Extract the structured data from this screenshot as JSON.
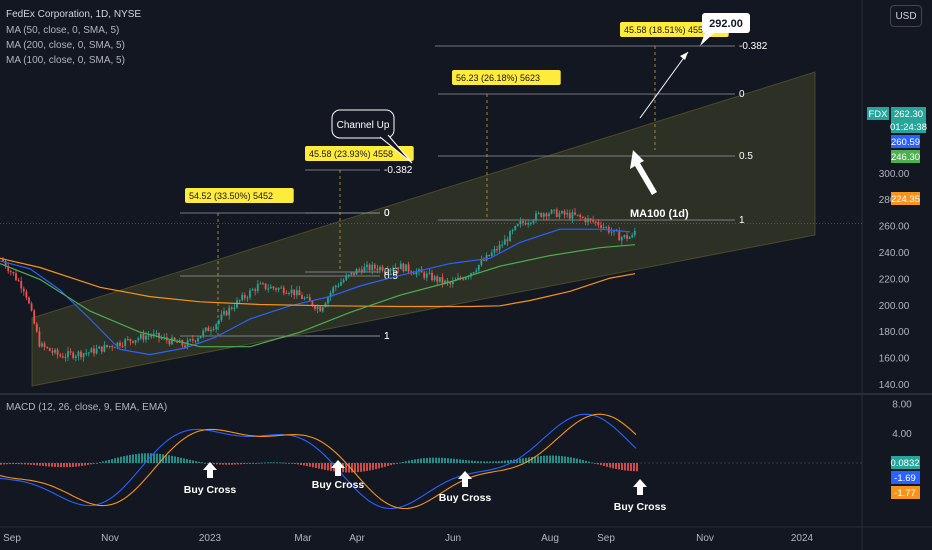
{
  "header": {
    "title": "FedEx Corporation, 1D, NYSE",
    "indicators": [
      "MA (50, close, 0, SMA, 5)",
      "MA (200, close, 0, SMA, 5)",
      "MA (100, close, 0, SMA, 5)"
    ],
    "currency_button": "USD"
  },
  "macd_legend": "MACD (12, 26, close, 9, EMA, EMA)",
  "colors": {
    "background": "#131722",
    "bull": "#26a69a",
    "bear": "#ef5350",
    "ma50": "#2962ff",
    "ma100": "#f7931a",
    "ma200": "#4caf50",
    "channel": "#6b6b2e",
    "label_bg": "#ffeb3b"
  },
  "chart_data": [
    {
      "type": "line",
      "title": "FedEx Corporation, 1D, NYSE",
      "price_axis": {
        "ticks": [
          "300.00",
          "280.00",
          "260.00",
          "240.00",
          "220.00",
          "200.00",
          "180.00",
          "160.00",
          "140.00"
        ],
        "ylim": [
          136,
          306
        ]
      },
      "time_axis": {
        "labels": [
          "Sep",
          "Nov",
          "2023",
          "Mar",
          "Apr",
          "Jun",
          "Aug",
          "Sep",
          "Nov",
          "2024"
        ]
      },
      "series": [
        {
          "name": "MA (50, close, 0, SMA, 5)",
          "color": "#2962ff",
          "points": [
            [
              0,
              234
            ],
            [
              30,
              228
            ],
            [
              60,
              212
            ],
            [
              90,
              190
            ],
            [
              120,
              167
            ],
            [
              150,
              163
            ],
            [
              185,
              168
            ],
            [
              215,
              176
            ],
            [
              250,
              190
            ],
            [
              290,
              200
            ],
            [
              330,
              207
            ],
            [
              360,
              215
            ],
            [
              400,
              223
            ],
            [
              450,
              232
            ],
            [
              490,
              236
            ],
            [
              520,
              248
            ],
            [
              560,
              258
            ],
            [
              600,
              258
            ],
            [
              630,
              256
            ]
          ]
        },
        {
          "name": "MA (100, close, 0, SMA, 5)",
          "color": "#f7931a",
          "points": [
            [
              0,
              236
            ],
            [
              40,
              229
            ],
            [
              100,
              214
            ],
            [
              150,
              207
            ],
            [
              200,
              203
            ],
            [
              260,
              201
            ],
            [
              330,
              200
            ],
            [
              400,
              199.5
            ],
            [
              470,
              199.5
            ],
            [
              500,
              200
            ],
            [
              530,
              204
            ],
            [
              570,
              211
            ],
            [
              610,
              221
            ],
            [
              635,
              224.35
            ]
          ]
        },
        {
          "name": "MA (200, close, 0, SMA, 5)",
          "color": "#4caf50",
          "points": [
            [
              0,
              232
            ],
            [
              40,
              220
            ],
            [
              90,
              196
            ],
            [
              140,
              180
            ],
            [
              200,
              169
            ],
            [
              250,
              169
            ],
            [
              300,
              180
            ],
            [
              350,
              195
            ],
            [
              400,
              208
            ],
            [
              450,
              218
            ],
            [
              500,
              230
            ],
            [
              550,
              238
            ],
            [
              600,
              244
            ],
            [
              635,
              246.3
            ]
          ]
        }
      ],
      "price_labels": [
        {
          "text": "FDX",
          "value": 262.3,
          "color": "#26a69a"
        },
        {
          "text": "262.30",
          "value": 262.3,
          "color": "#26a69a"
        },
        {
          "text": "01:24:38",
          "value": 262.3,
          "color": "#26a69a"
        },
        {
          "text": "260.59",
          "value": 260.59,
          "color": "#2962ff"
        },
        {
          "text": "246.30",
          "value": 246.3,
          "color": "#4caf50"
        },
        {
          "text": "224.35",
          "value": 224.35,
          "color": "#f7931a"
        }
      ],
      "fib_sets": [
        {
          "levels": [
            {
              "label": "0",
              "value": 217.2
            },
            {
              "label": "0.5",
              "value": 190.0
            },
            {
              "label": "1",
              "value": 162.7
            }
          ],
          "range_label": "54.52 (33.50%) 5452"
        },
        {
          "levels": [
            {
              "label": "-0.382",
              "value": 236.8
            },
            {
              "label": "0",
              "value": 218.9
            },
            {
              "label": "0.5",
              "value": 190.0
            },
            {
              "label": "1",
              "value": 162.8
            }
          ],
          "range_label": "45.58 (23.93%) 4558"
        },
        {
          "levels": [
            {
              "label": "0",
              "value": 270.8
            },
            {
              "label": "0.5",
              "value": 245.4
            },
            {
              "label": "1",
              "value": 216.9
            }
          ],
          "range_label": "56.23 (26.18%) 5623"
        },
        {
          "levels": [
            {
              "label": "-0.382",
              "value": 294.8
            }
          ],
          "range_label": "45.58 (18.51%) 4558"
        }
      ],
      "annotations": {
        "target": "292.00",
        "channel": "Channel Up",
        "ma100": "MA100 (1d)"
      }
    },
    {
      "type": "bar",
      "title": "MACD (12, 26, close, 9, EMA, EMA)",
      "axis_ticks": [
        "8.00",
        "4.00"
      ],
      "values": {
        "histogram": "0.0832",
        "macd": "-1.69",
        "signal": "-1.77"
      },
      "buy_cross_labels": [
        "Buy Cross",
        "Buy Cross",
        "Buy Cross",
        "Buy Cross"
      ]
    }
  ]
}
